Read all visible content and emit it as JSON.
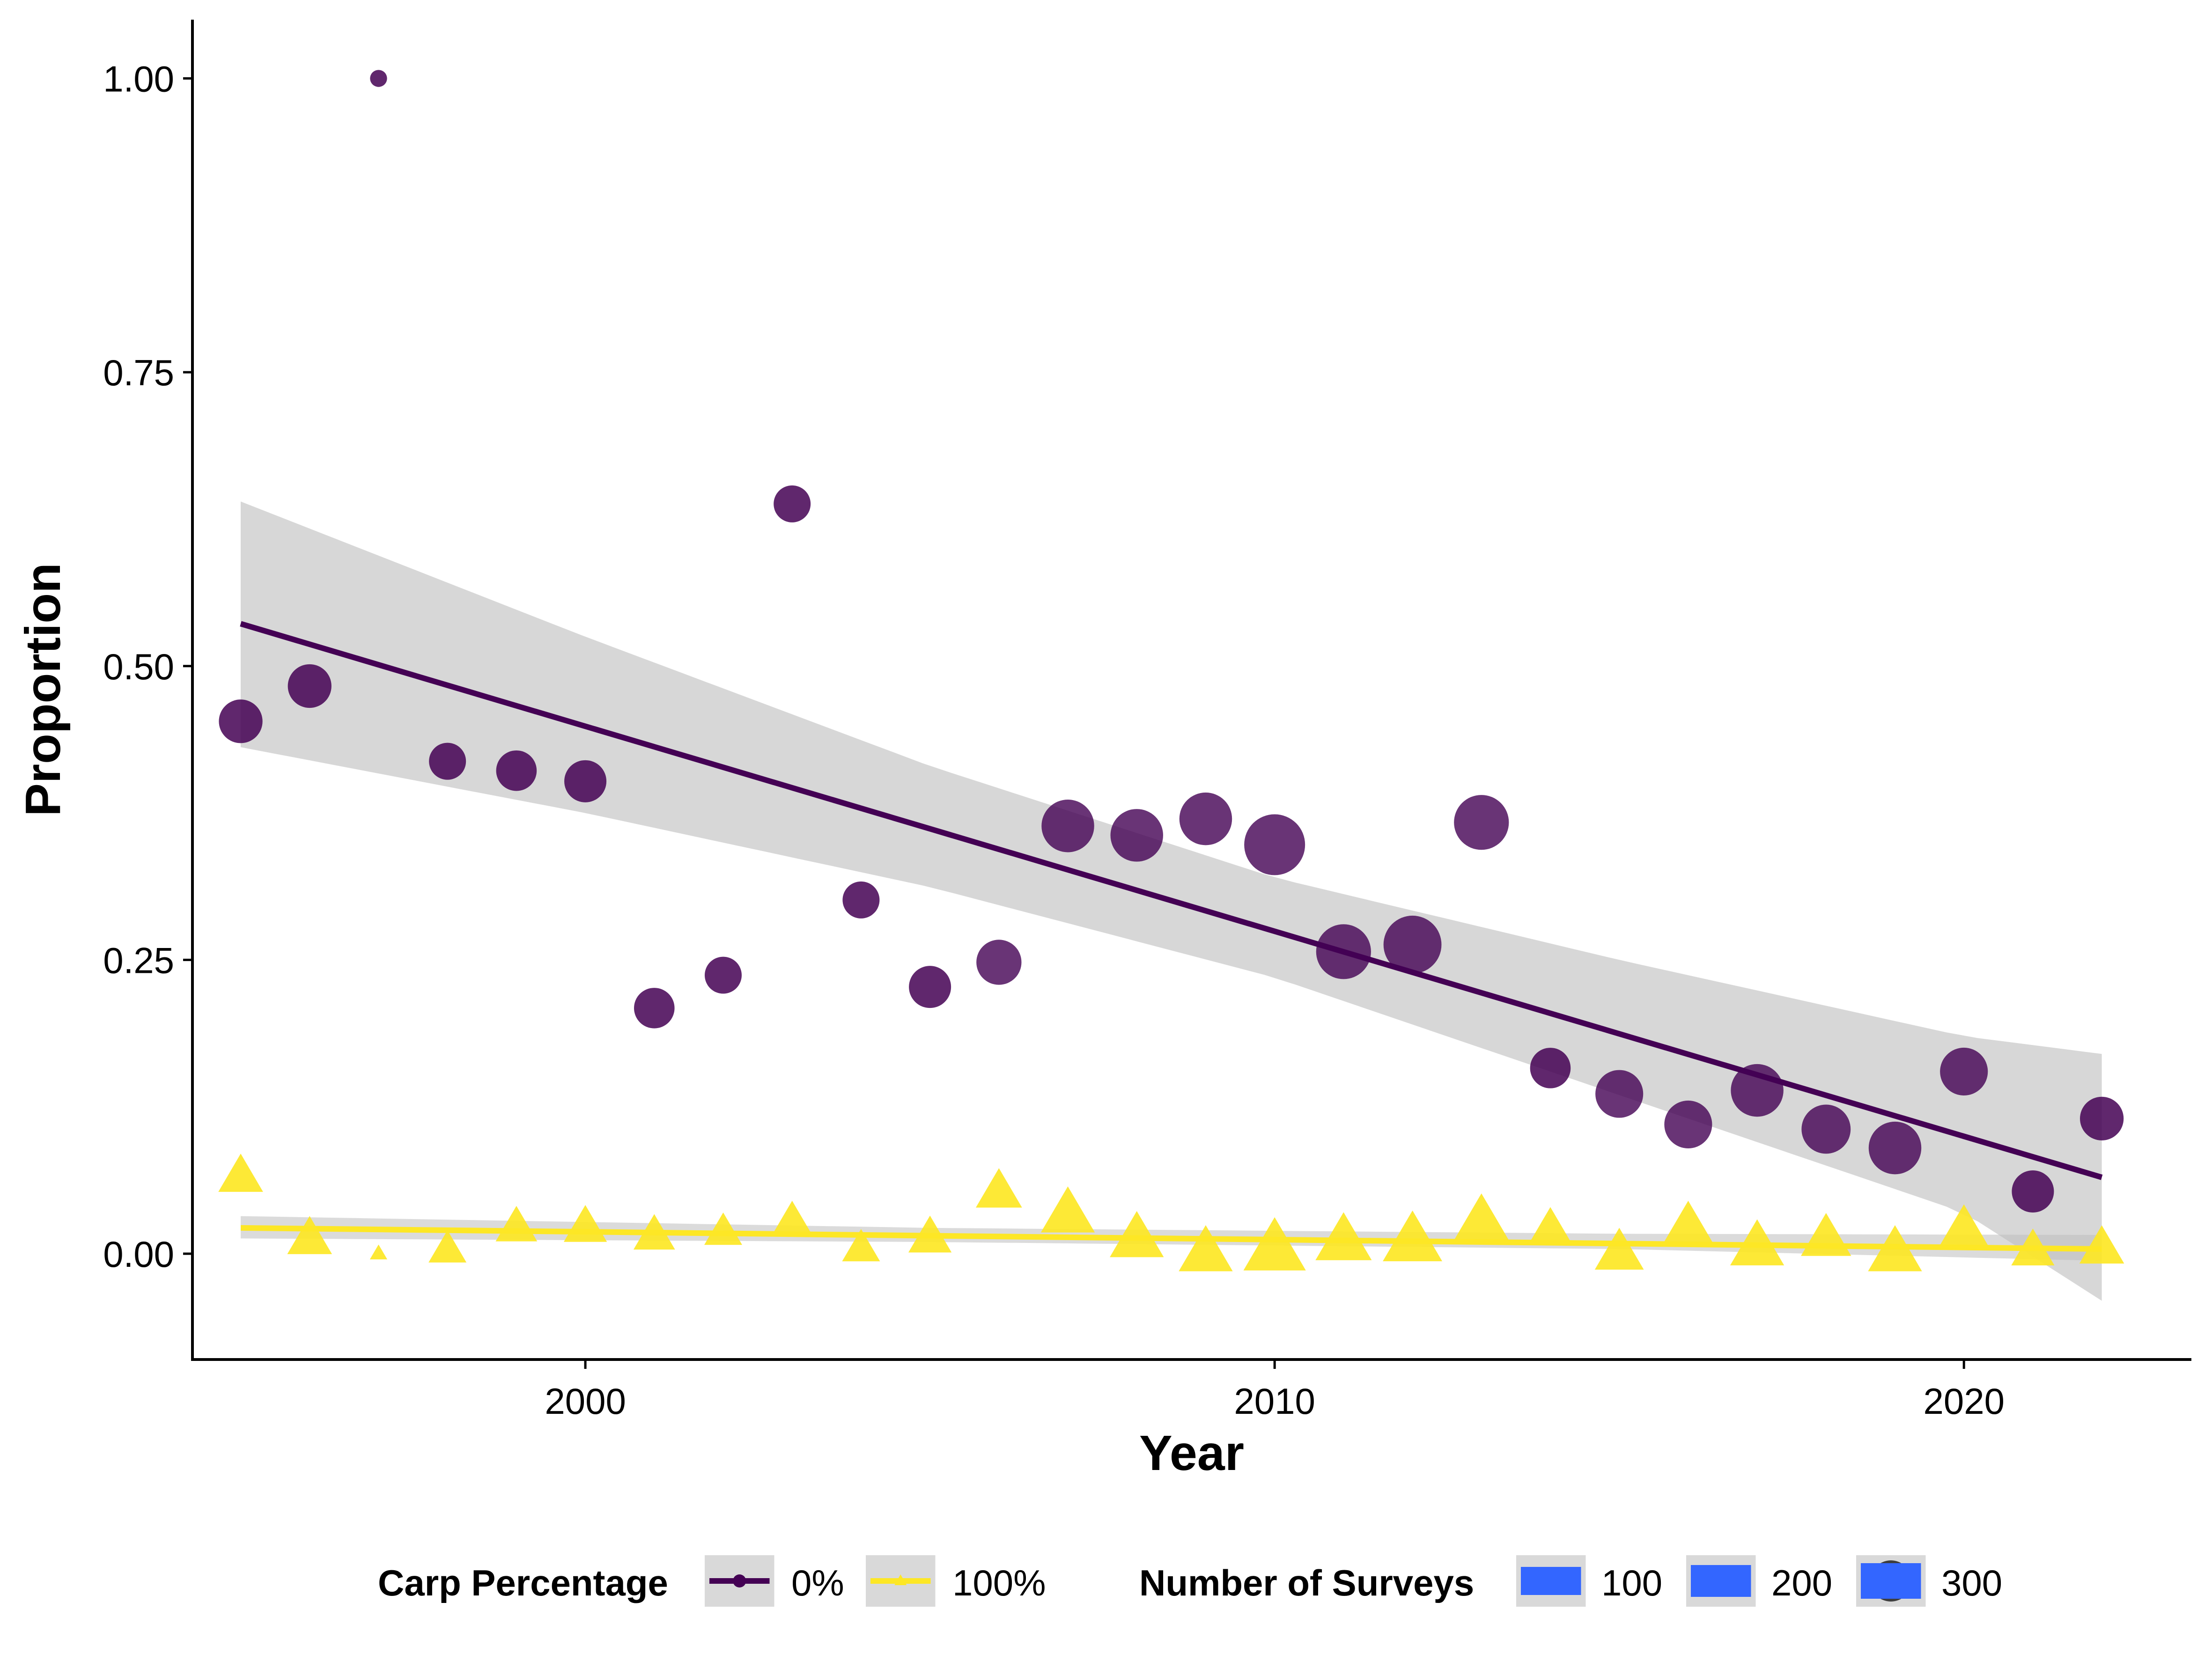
{
  "chart_data": {
    "type": "scatter",
    "xlabel": "Year",
    "ylabel": "Proportion",
    "xlim": [
      1994.3,
      2023.3
    ],
    "ylim": [
      -0.09,
      1.05
    ],
    "x_ticks": [
      2000,
      2010,
      2020
    ],
    "x_tick_labels": [
      "2000",
      "2010",
      "2020"
    ],
    "y_ticks": [
      0,
      0.25,
      0.5,
      0.75,
      1.0
    ],
    "y_tick_labels": [
      "0.00",
      "0.25",
      "0.50",
      "0.75",
      "1.00"
    ],
    "grid": false,
    "legend_position": "bottom",
    "series": [
      {
        "name": "0%",
        "color": "#440154",
        "marker": "circle",
        "points": [
          {
            "x": 1995,
            "y": 0.453,
            "n": 100
          },
          {
            "x": 1996,
            "y": 0.483,
            "n": 100
          },
          {
            "x": 1997,
            "y": 1.0,
            "n": 1
          },
          {
            "x": 1998,
            "y": 0.419,
            "n": 60
          },
          {
            "x": 1999,
            "y": 0.411,
            "n": 80
          },
          {
            "x": 2000,
            "y": 0.402,
            "n": 90
          },
          {
            "x": 2001,
            "y": 0.209,
            "n": 80
          },
          {
            "x": 2002,
            "y": 0.237,
            "n": 60
          },
          {
            "x": 2003,
            "y": 0.638,
            "n": 60
          },
          {
            "x": 2004,
            "y": 0.301,
            "n": 60
          },
          {
            "x": 2005,
            "y": 0.227,
            "n": 90
          },
          {
            "x": 2006,
            "y": 0.248,
            "n": 110
          },
          {
            "x": 2007,
            "y": 0.364,
            "n": 170
          },
          {
            "x": 2008,
            "y": 0.356,
            "n": 170
          },
          {
            "x": 2009,
            "y": 0.37,
            "n": 170
          },
          {
            "x": 2010,
            "y": 0.348,
            "n": 250
          },
          {
            "x": 2011,
            "y": 0.257,
            "n": 190
          },
          {
            "x": 2012,
            "y": 0.263,
            "n": 220
          },
          {
            "x": 2013,
            "y": 0.367,
            "n": 190
          },
          {
            "x": 2014,
            "y": 0.158,
            "n": 80
          },
          {
            "x": 2015,
            "y": 0.136,
            "n": 130
          },
          {
            "x": 2016,
            "y": 0.11,
            "n": 130
          },
          {
            "x": 2017,
            "y": 0.139,
            "n": 170
          },
          {
            "x": 2018,
            "y": 0.106,
            "n": 140
          },
          {
            "x": 2019,
            "y": 0.09,
            "n": 170
          },
          {
            "x": 2020,
            "y": 0.155,
            "n": 130
          },
          {
            "x": 2021,
            "y": 0.053,
            "n": 90
          },
          {
            "x": 2022,
            "y": 0.115,
            "n": 100
          }
        ],
        "fit": {
          "x": [
            1995,
            2022
          ],
          "y": [
            0.536,
            0.065
          ]
        },
        "ci": {
          "x": [
            1995,
            2000,
            2005,
            2010,
            2015,
            2020,
            2022
          ],
          "lower": [
            0.431,
            0.375,
            0.312,
            0.235,
            0.135,
            0.035,
            -0.04
          ],
          "upper": [
            0.64,
            0.525,
            0.415,
            0.32,
            0.25,
            0.185,
            0.17
          ]
        }
      },
      {
        "name": "100%",
        "color": "#fde725",
        "marker": "triangle",
        "points": [
          {
            "x": 1995,
            "y": 0.065,
            "n": 100
          },
          {
            "x": 1996,
            "y": 0.012,
            "n": 100
          },
          {
            "x": 1997,
            "y": 0.0,
            "n": 1
          },
          {
            "x": 1998,
            "y": 0.003,
            "n": 60
          },
          {
            "x": 1999,
            "y": 0.022,
            "n": 80
          },
          {
            "x": 2000,
            "y": 0.022,
            "n": 90
          },
          {
            "x": 2001,
            "y": 0.015,
            "n": 80
          },
          {
            "x": 2002,
            "y": 0.018,
            "n": 60
          },
          {
            "x": 2003,
            "y": 0.028,
            "n": 60
          },
          {
            "x": 2004,
            "y": 0.004,
            "n": 60
          },
          {
            "x": 2005,
            "y": 0.013,
            "n": 90
          },
          {
            "x": 2006,
            "y": 0.052,
            "n": 110
          },
          {
            "x": 2007,
            "y": 0.033,
            "n": 170
          },
          {
            "x": 2008,
            "y": 0.012,
            "n": 170
          },
          {
            "x": 2009,
            "y": 0.0,
            "n": 170
          },
          {
            "x": 2010,
            "y": 0.003,
            "n": 250
          },
          {
            "x": 2011,
            "y": 0.01,
            "n": 190
          },
          {
            "x": 2012,
            "y": 0.01,
            "n": 220
          },
          {
            "x": 2013,
            "y": 0.026,
            "n": 190
          },
          {
            "x": 2014,
            "y": 0.021,
            "n": 80
          },
          {
            "x": 2015,
            "y": 0.0,
            "n": 130
          },
          {
            "x": 2016,
            "y": 0.023,
            "n": 130
          },
          {
            "x": 2017,
            "y": 0.005,
            "n": 170
          },
          {
            "x": 2018,
            "y": 0.012,
            "n": 140
          },
          {
            "x": 2019,
            "y": 0.0,
            "n": 170
          },
          {
            "x": 2020,
            "y": 0.02,
            "n": 130
          },
          {
            "x": 2021,
            "y": 0.002,
            "n": 90
          },
          {
            "x": 2022,
            "y": 0.004,
            "n": 100
          }
        ],
        "fit": {
          "x": [
            1995,
            2022
          ],
          "y": [
            0.022,
            0.004
          ]
        },
        "ci": {
          "x": [
            1995,
            2005,
            2015,
            2022
          ],
          "lower": [
            0.013,
            0.01,
            0.004,
            -0.006
          ],
          "upper": [
            0.032,
            0.022,
            0.017,
            0.016
          ]
        }
      }
    ],
    "legend": {
      "color_title": "Carp Percentage",
      "color_entries": [
        "0%",
        "100%"
      ],
      "size_title": "Number of Surveys",
      "size_entries": [
        {
          "label": "100",
          "n": 100
        },
        {
          "label": "200",
          "n": 200
        },
        {
          "label": "300",
          "n": 300
        }
      ]
    },
    "ci_color": "#bdbdbd",
    "legend_key_fill": "#d9d9d9",
    "size_key_fill": "#3366ff"
  }
}
